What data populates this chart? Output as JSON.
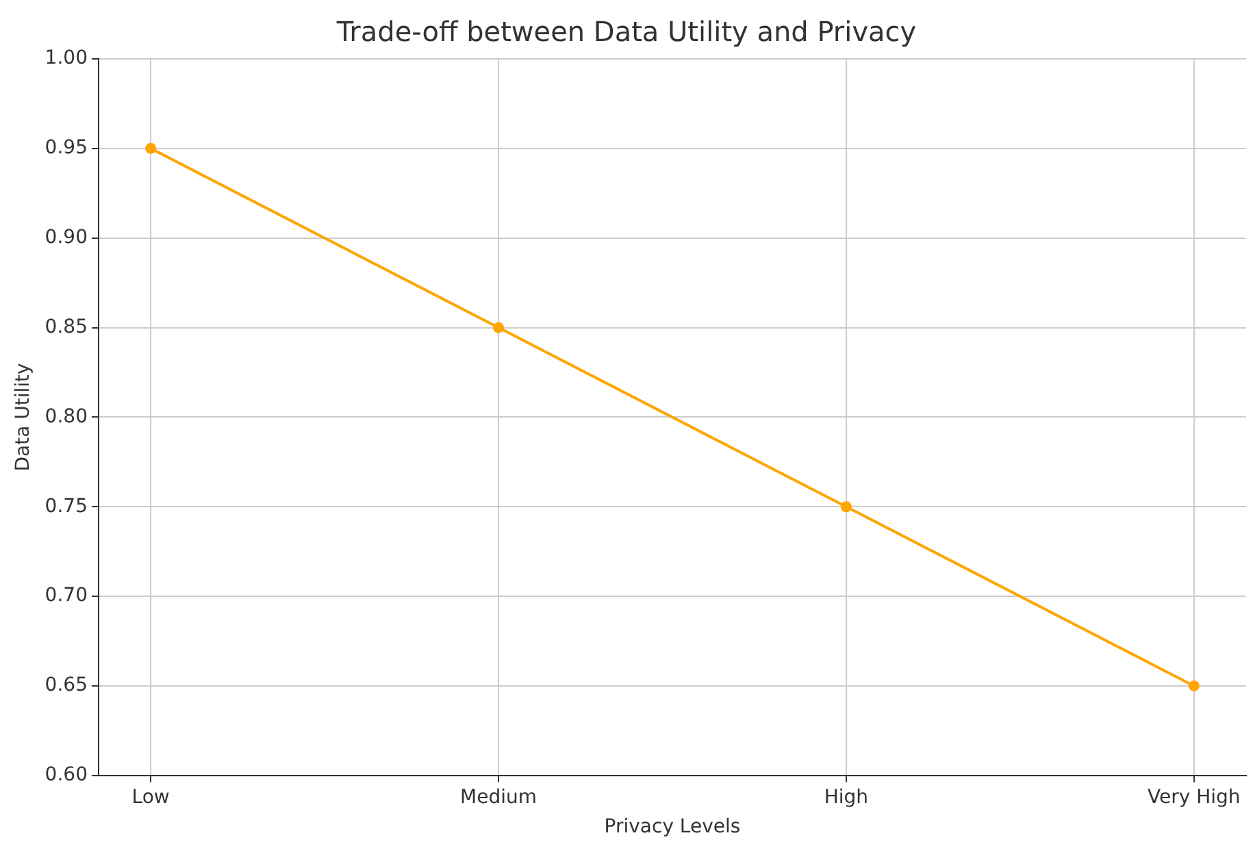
{
  "chart_data": {
    "type": "line",
    "title": "Trade-off between Data Utility and Privacy",
    "xlabel": "Privacy Levels",
    "ylabel": "Data Utility",
    "categories": [
      "Low",
      "Medium",
      "High",
      "Very High"
    ],
    "series": [
      {
        "color": "#ffa500",
        "values": [
          0.95,
          0.85,
          0.75,
          0.65
        ]
      }
    ],
    "ylim": [
      0.6,
      1.0
    ],
    "yticks": [
      {
        "value": 0.6,
        "label": "0.60"
      },
      {
        "value": 0.65,
        "label": "0.65"
      },
      {
        "value": 0.7,
        "label": "0.70"
      },
      {
        "value": 0.75,
        "label": "0.75"
      },
      {
        "value": 0.8,
        "label": "0.80"
      },
      {
        "value": 0.85,
        "label": "0.85"
      },
      {
        "value": 0.9,
        "label": "0.90"
      },
      {
        "value": 0.95,
        "label": "0.95"
      },
      {
        "value": 1.0,
        "label": "1.00"
      }
    ],
    "grid": true,
    "legend": false,
    "marker": "circle",
    "line_style": "solid"
  }
}
